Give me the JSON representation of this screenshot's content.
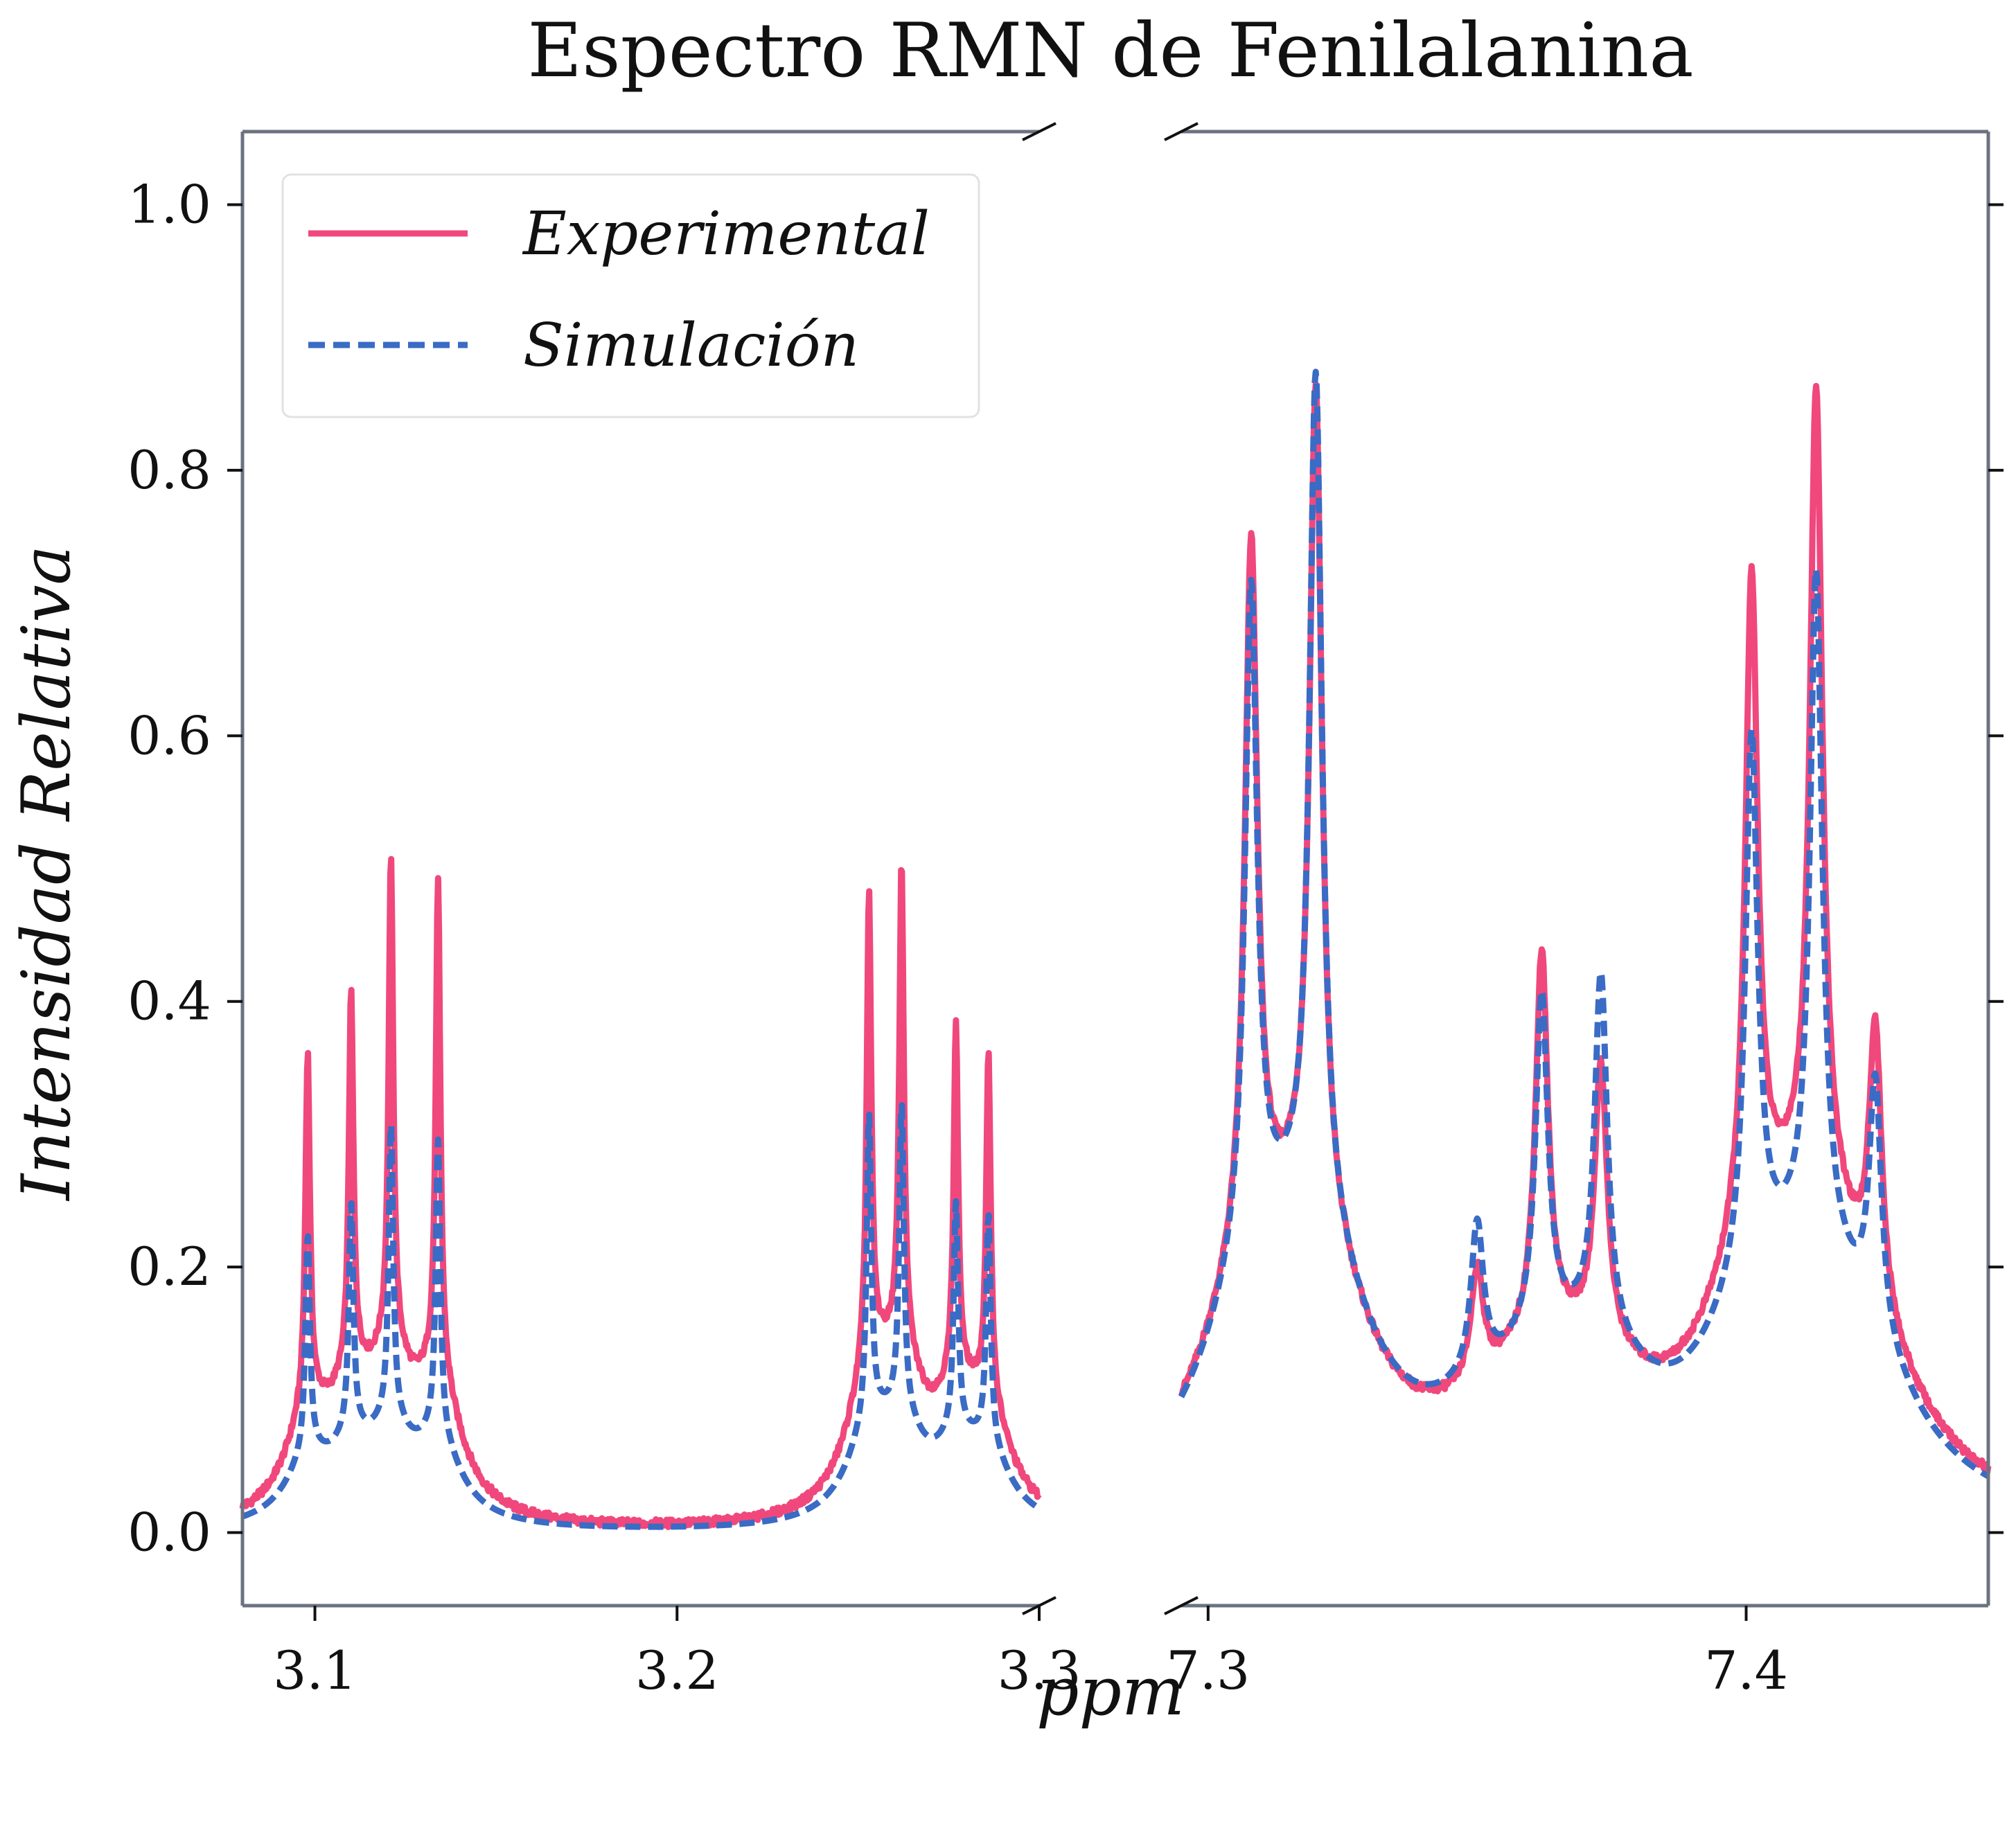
{
  "chart_data": {
    "type": "line",
    "title": "Espectro RMN de Fenilalanina",
    "xlabel": "ppm",
    "ylabel": "Intensidad Relativa",
    "broken_x_axis": true,
    "panels": [
      {
        "xlim": [
          3.08,
          3.3
        ],
        "xticks": [
          3.1,
          3.2,
          3.3
        ],
        "xtick_labels": [
          "3.1",
          "3.2",
          "3.3"
        ]
      },
      {
        "xlim": [
          7.295,
          7.445
        ],
        "xticks": [
          7.3,
          7.4
        ],
        "xtick_labels": [
          "7.3",
          "7.4"
        ]
      }
    ],
    "ylim": [
      -0.055,
      1.055
    ],
    "yticks": [
      0.0,
      0.2,
      0.4,
      0.6,
      0.8,
      1.0
    ],
    "ytick_labels": [
      "0.0",
      "0.2",
      "0.4",
      "0.6",
      "0.8",
      "1.0"
    ],
    "grid": false,
    "legend_position": "top-left",
    "series": [
      {
        "name": "Experimental",
        "color": "#f0487c",
        "style": "solid",
        "peaks": {
          "left": [
            {
              "x": 3.098,
              "y": 0.37
            },
            {
              "x": 3.11,
              "y": 0.395
            },
            {
              "x": 3.121,
              "y": 0.515
            },
            {
              "x": 3.134,
              "y": 0.515
            },
            {
              "x": 3.253,
              "y": 0.49
            },
            {
              "x": 3.262,
              "y": 0.505
            },
            {
              "x": 3.277,
              "y": 0.37
            },
            {
              "x": 3.286,
              "y": 0.36
            }
          ],
          "right": [
            {
              "x": 7.308,
              "y": 0.845
            },
            {
              "x": 7.32,
              "y": 1.0
            },
            {
              "x": 7.35,
              "y": 0.135
            },
            {
              "x": 7.362,
              "y": 0.46
            },
            {
              "x": 7.373,
              "y": 0.335
            },
            {
              "x": 7.401,
              "y": 0.785
            },
            {
              "x": 7.413,
              "y": 0.97
            },
            {
              "x": 7.424,
              "y": 0.335
            }
          ]
        }
      },
      {
        "name": "Simulación",
        "color": "#3a6bc5",
        "style": "dashed",
        "peaks": {
          "left": [
            {
              "x": 3.098,
              "y": 0.23
            },
            {
              "x": 3.11,
              "y": 0.24
            },
            {
              "x": 3.121,
              "y": 0.31
            },
            {
              "x": 3.134,
              "y": 0.31
            },
            {
              "x": 3.253,
              "y": 0.32
            },
            {
              "x": 3.262,
              "y": 0.325
            },
            {
              "x": 3.277,
              "y": 0.24
            },
            {
              "x": 3.286,
              "y": 0.24
            }
          ],
          "right": [
            {
              "x": 7.308,
              "y": 0.785
            },
            {
              "x": 7.32,
              "y": 1.0
            },
            {
              "x": 7.35,
              "y": 0.18
            },
            {
              "x": 7.362,
              "y": 0.4
            },
            {
              "x": 7.373,
              "y": 0.425
            },
            {
              "x": 7.401,
              "y": 0.635
            },
            {
              "x": 7.413,
              "y": 0.795
            },
            {
              "x": 7.424,
              "y": 0.3
            }
          ]
        }
      }
    ]
  },
  "colors": {
    "frame": "#6b7280",
    "text": "#111111",
    "background": "#ffffff"
  }
}
